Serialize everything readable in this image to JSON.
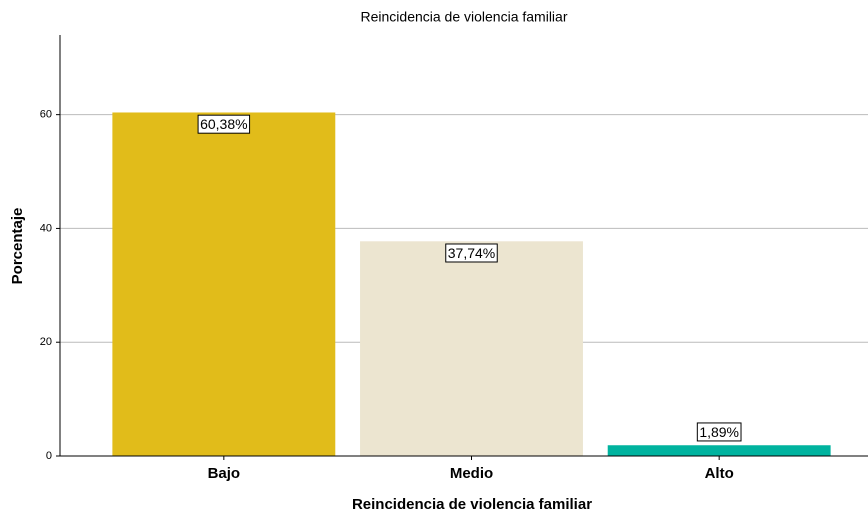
{
  "chart_data": {
    "type": "bar",
    "title": "Reincidencia de violencia familiar",
    "x_label": "Reincidencia de violencia familiar",
    "y_label": "Porcentaje",
    "categories": [
      "Bajo",
      "Medio",
      "Alto"
    ],
    "values": [
      60.38,
      37.74,
      1.89
    ],
    "value_labels": [
      "60,38%",
      "37,74%",
      "1,89%"
    ],
    "colors": [
      "#e1bc1a",
      "#ece5d0",
      "#00b39f"
    ],
    "ylim": [
      0,
      74
    ],
    "yticks": [
      0,
      20,
      40,
      60
    ],
    "grid": true
  }
}
